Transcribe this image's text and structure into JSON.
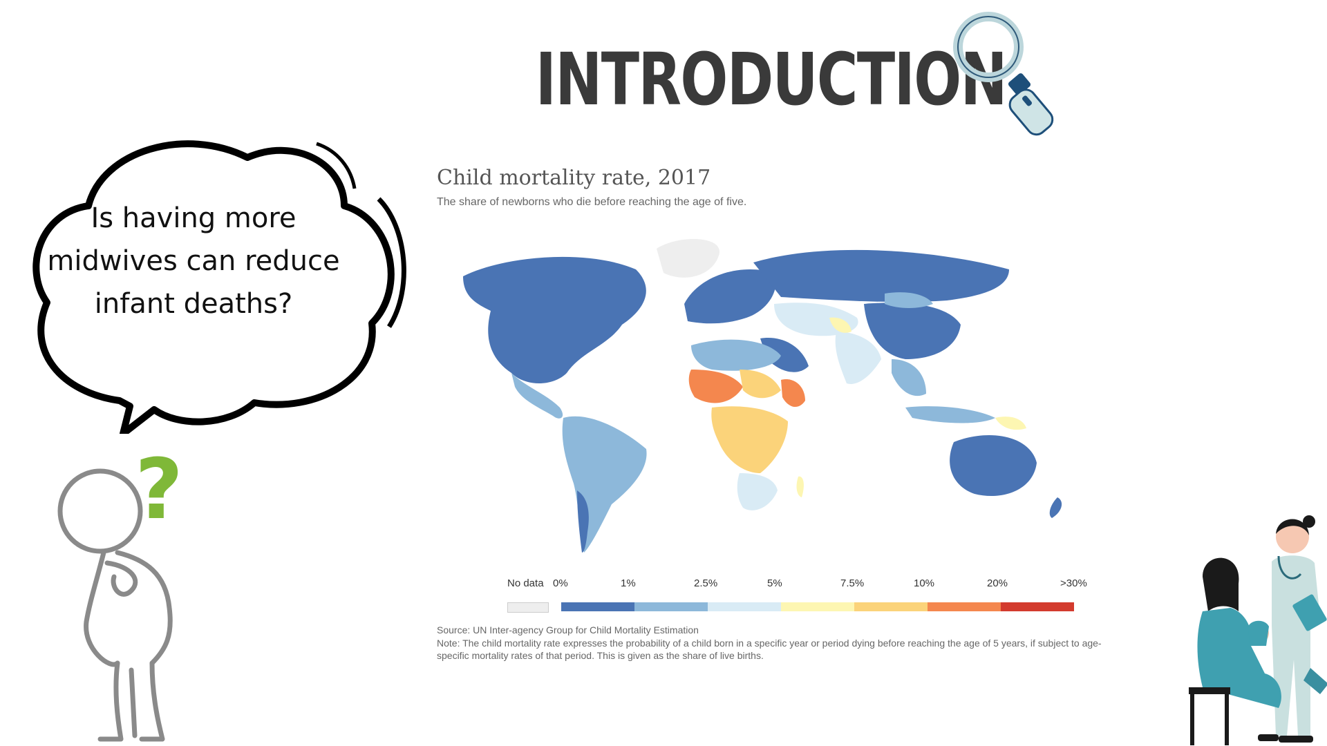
{
  "slide": {
    "title": "INTRODUCTION",
    "bubble_lines": [
      "Is having more",
      "midwives can reduce",
      "infant deaths?"
    ],
    "icons": [
      "magnifier-icon",
      "thinking-person-icon",
      "question-mark-icon",
      "nurse-and-mother-with-baby-icon"
    ],
    "question_mark": "?"
  },
  "chart_data": {
    "type": "choropleth",
    "title": "Child mortality rate, 2017",
    "subtitle": "The share of newborns who die before reaching the age of five.",
    "legend": {
      "no_data_label": "No data",
      "no_data_color": "#eeeeee",
      "tick_labels": [
        "0%",
        "1%",
        "2.5%",
        "5%",
        "7.5%",
        "10%",
        "20%",
        ">30%"
      ],
      "bins": [
        {
          "from": 0,
          "to": 1,
          "color": "#4a74b4"
        },
        {
          "from": 1,
          "to": 2.5,
          "color": "#8db8da"
        },
        {
          "from": 2.5,
          "to": 5,
          "color": "#d9ebf5"
        },
        {
          "from": 5,
          "to": 7.5,
          "color": "#fdf6b2"
        },
        {
          "from": 7.5,
          "to": 10,
          "color": "#fbd37a"
        },
        {
          "from": 10,
          "to": 20,
          "color": "#f4874e"
        },
        {
          "from": 20,
          "to": 30,
          "color": "#d33b2e"
        }
      ]
    },
    "source": "Source: UN Inter-agency Group for Child Mortality Estimation",
    "note": "Note: The child mortality rate expresses the probability of a child born in a specific year or period dying before reaching the age of 5 years, if subject to age-specific mortality rates of that period. This is given as the share of live births."
  }
}
